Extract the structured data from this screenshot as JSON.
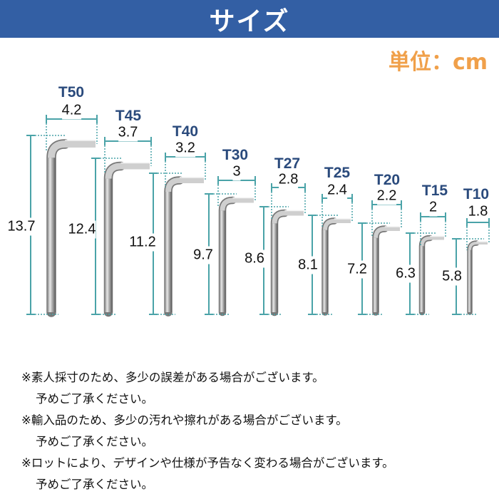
{
  "header": {
    "title": "サイズ"
  },
  "unit_label": "単位：cm",
  "colors": {
    "banner": "#335fa4",
    "unit": "#f0a04a",
    "dimension_line": "#4aa3a8",
    "size_label": "#2a4a7c"
  },
  "wrenches": [
    {
      "name": "T50",
      "width": "4.2",
      "height": "13.7"
    },
    {
      "name": "T45",
      "width": "3.7",
      "height": "12.4"
    },
    {
      "name": "T40",
      "width": "3.2",
      "height": "11.2"
    },
    {
      "name": "T30",
      "width": "3",
      "height": "9.7"
    },
    {
      "name": "T27",
      "width": "2.8",
      "height": "8.6"
    },
    {
      "name": "T25",
      "width": "2.4",
      "height": "8.1"
    },
    {
      "name": "T20",
      "width": "2.2",
      "height": "7.2"
    },
    {
      "name": "T15",
      "width": "2",
      "height": "6.3"
    },
    {
      "name": "T10",
      "width": "1.8",
      "height": "5.8"
    }
  ],
  "notes": [
    {
      "main": "※素人採寸のため、多少の誤差がある場合がございます。",
      "sub": "予めご了承ください。"
    },
    {
      "main": "※輸入品のため、多少の汚れや擦れがある場合がございます。",
      "sub": "予めご了承ください。"
    },
    {
      "main": "※ロットにより、デザインや仕様が予告なく変わる場合がございます。",
      "sub": "予めご了承ください。"
    }
  ]
}
